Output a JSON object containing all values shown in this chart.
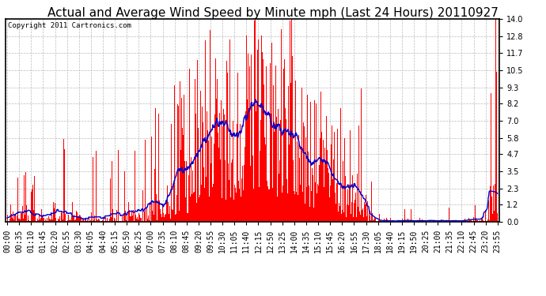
{
  "title": "Actual and Average Wind Speed by Minute mph (Last 24 Hours) 20110927",
  "copyright": "Copyright 2011 Cartronics.com",
  "yticks": [
    0.0,
    1.2,
    2.3,
    3.5,
    4.7,
    5.8,
    7.0,
    8.2,
    9.3,
    10.5,
    11.7,
    12.8,
    14.0
  ],
  "ylim": [
    0.0,
    14.0
  ],
  "bar_color": "#FF0000",
  "line_color": "#0000CC",
  "bg_color": "#FFFFFF",
  "grid_color": "#AAAAAA",
  "title_fontsize": 11,
  "copyright_fontsize": 6.5,
  "tick_label_fontsize": 7,
  "xtick_labels": [
    "00:00",
    "00:35",
    "01:10",
    "01:45",
    "02:20",
    "02:55",
    "03:30",
    "04:05",
    "04:40",
    "05:15",
    "05:50",
    "06:25",
    "07:00",
    "07:35",
    "08:10",
    "08:45",
    "09:20",
    "09:55",
    "10:30",
    "11:05",
    "11:40",
    "12:15",
    "12:50",
    "13:25",
    "14:00",
    "14:35",
    "15:10",
    "15:45",
    "16:20",
    "16:55",
    "17:30",
    "18:05",
    "18:40",
    "19:15",
    "19:50",
    "20:25",
    "21:00",
    "21:35",
    "22:10",
    "22:45",
    "23:20",
    "23:55"
  ]
}
